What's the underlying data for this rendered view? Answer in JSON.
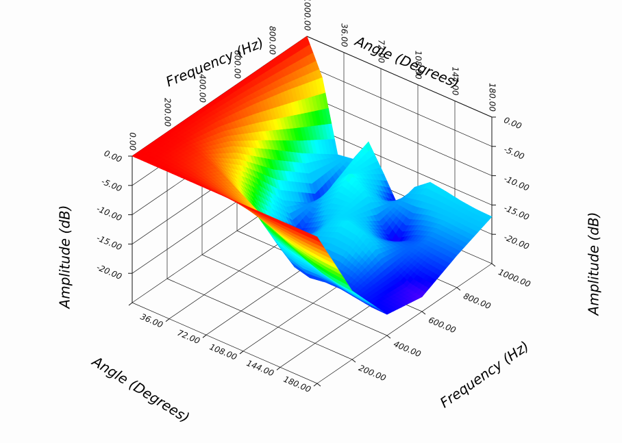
{
  "chart_data": {
    "type": "surface",
    "title": "",
    "colormap": [
      "#ff00ff",
      "#0000ff",
      "#00bfff",
      "#00ffff",
      "#00ff00",
      "#ffff00",
      "#ff8000",
      "#ff0000"
    ],
    "angle_axis": {
      "label": "Angle (Degrees)",
      "range": [
        0,
        180
      ],
      "ticks": [
        "0.00",
        "36.00",
        "72.00",
        "108.00",
        "144.00",
        "180.00"
      ],
      "top_ticks": [
        "36.00",
        "72.00",
        "108.00",
        "144.00",
        "180.00"
      ]
    },
    "frequency_axis": {
      "label": "Frequency (Hz)",
      "range": [
        0,
        1000
      ],
      "ticks": [
        "0.00",
        "200.00",
        "400.00",
        "600.00",
        "800.00",
        "1000.00"
      ],
      "top_ticks": [
        "0.00",
        "200.00",
        "400.00",
        "600.00",
        "800.00",
        "1000.00"
      ]
    },
    "amplitude_axis": {
      "label": "Amplitude (dB)",
      "range": [
        -25,
        0
      ],
      "ticks": [
        "0.00",
        "-5.00",
        "-10.00",
        "-15.00",
        "-20.00"
      ]
    },
    "sample_angles": [
      0,
      15,
      30,
      45,
      60,
      75,
      90,
      105,
      120,
      135,
      150,
      165,
      180
    ],
    "sample_frequencies": [
      0,
      200,
      400,
      600,
      800,
      1000
    ],
    "amplitude_db": [
      [
        0,
        0,
        0,
        0,
        0,
        0,
        0,
        0,
        0,
        0,
        0,
        0,
        0
      ],
      [
        0,
        -0.3,
        -1.1,
        -2.2,
        -3.7,
        -5.3,
        -6.9,
        -8.6,
        -10.1,
        -11.4,
        -12.4,
        -13,
        -13.3
      ],
      [
        0,
        -1.1,
        -4.2,
        -8.6,
        -13.6,
        -17.9,
        -20.2,
        -20.9,
        -20.5,
        -20.5,
        -20.9,
        -21.3,
        -21.4
      ],
      [
        0,
        -2.4,
        -8.8,
        -16.4,
        -20.9,
        -19.6,
        -16.8,
        -15.3,
        -15.8,
        -17.9,
        -20.5,
        -22,
        -22.5
      ],
      [
        0,
        -4,
        -13.6,
        -21.1,
        -16.5,
        -13.7,
        -15.3,
        -19.4,
        -22.2,
        -20.3,
        -19.2,
        -19.3,
        -19.5
      ],
      [
        0,
        -5.9,
        -17.9,
        -17.5,
        -13.4,
        -17.8,
        -22.5,
        -17.7,
        -15.7,
        -16.1,
        -16.6,
        -16.9,
        -17
      ]
    ]
  }
}
